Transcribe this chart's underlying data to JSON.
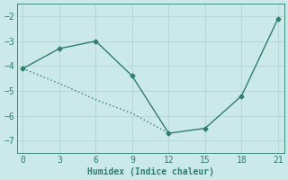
{
  "line1_x": [
    0,
    3,
    6,
    9,
    12,
    15,
    18,
    21
  ],
  "line1_y": [
    -4.1,
    -3.3,
    -3.0,
    -4.4,
    -6.7,
    -6.5,
    -5.2,
    -2.1
  ],
  "line2_x": [
    0,
    3,
    6,
    9,
    12
  ],
  "line2_y": [
    -4.1,
    -4.7,
    -5.35,
    -5.9,
    -6.7
  ],
  "xlabel": "Humidex (Indice chaleur)",
  "xlim": [
    -0.5,
    21.5
  ],
  "ylim": [
    -7.5,
    -1.5
  ],
  "xticks": [
    0,
    3,
    6,
    9,
    12,
    15,
    18,
    21
  ],
  "yticks": [
    -7,
    -6,
    -5,
    -4,
    -3,
    -2
  ],
  "line_color": "#2e7d6e",
  "bg_color": "#cce9e9",
  "grid_color": "#b8d8d8",
  "marker": "D",
  "marker_size": 2.5,
  "linewidth": 1.0
}
